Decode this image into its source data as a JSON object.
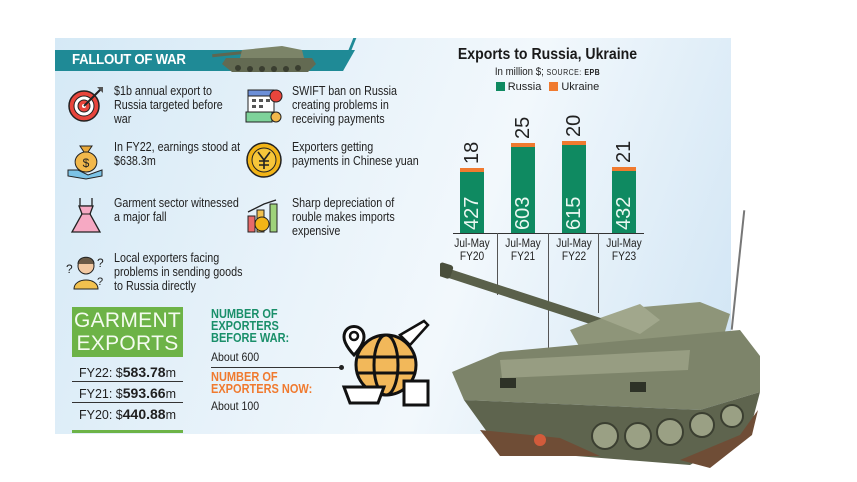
{
  "header": {
    "title": "FALLOUT OF WAR"
  },
  "facts": [
    {
      "icon": "target-icon",
      "text": "$1b annual export to Russia targeted before war"
    },
    {
      "icon": "money-bag-icon",
      "text": "In FY22, earnings stood at $638.3m"
    },
    {
      "icon": "dress-icon",
      "text": "Garment sector witnessed a major fall"
    },
    {
      "icon": "confused-person-icon",
      "text": "Local exporters facing problems in sending goods to Russia directly"
    },
    {
      "icon": "calendar-payment-icon",
      "text": "SWIFT ban on Russia creating problems in receiving payments"
    },
    {
      "icon": "yuan-coin-icon",
      "text": "Exporters getting payments in Chinese yuan"
    },
    {
      "icon": "rising-chart-coin-icon",
      "text": "Sharp depreciation of rouble makes imports expensive"
    }
  ],
  "garment": {
    "title_line1": "GARMENT",
    "title_line2": "EXPORTS",
    "rows": [
      {
        "label": "FY22: $",
        "value": "583.78",
        "unit": "m"
      },
      {
        "label": "FY21: $",
        "value": "593.66",
        "unit": "m"
      },
      {
        "label": "FY20: $",
        "value": "440.88",
        "unit": "m"
      }
    ]
  },
  "exporters": {
    "before_heading_1": "NUMBER OF",
    "before_heading_2": "EXPORTERS",
    "before_heading_3": "BEFORE WAR:",
    "before_value": "About 600",
    "now_heading_1": "NUMBER OF",
    "now_heading_2": "EXPORTERS NOW:",
    "now_value": "About 100",
    "icon": "global-trade-icon"
  },
  "chart_data": {
    "type": "bar",
    "title": "Exports to Russia, Ukraine",
    "subtitle": "In million $;",
    "source_label": "SOURCE:",
    "source": "EPB",
    "legend": [
      "Russia",
      "Ukraine"
    ],
    "colors": {
      "Russia": "#0f8a61",
      "Ukraine": "#f07a2f"
    },
    "categories": [
      "Jul-May FY20",
      "Jul-May FY21",
      "Jul-May FY22",
      "Jul-May FY23"
    ],
    "category_lines": [
      [
        "Jul-May",
        "FY20"
      ],
      [
        "Jul-May",
        "FY21"
      ],
      [
        "Jul-May",
        "FY22"
      ],
      [
        "Jul-May",
        "FY23"
      ]
    ],
    "series": [
      {
        "name": "Russia",
        "values": [
          427,
          603,
          615,
          432
        ]
      },
      {
        "name": "Ukraine",
        "values": [
          18,
          25,
          20,
          21
        ]
      }
    ],
    "stacked": true,
    "grid": false,
    "legend_position": "top",
    "xlabel": "",
    "ylabel": ""
  }
}
